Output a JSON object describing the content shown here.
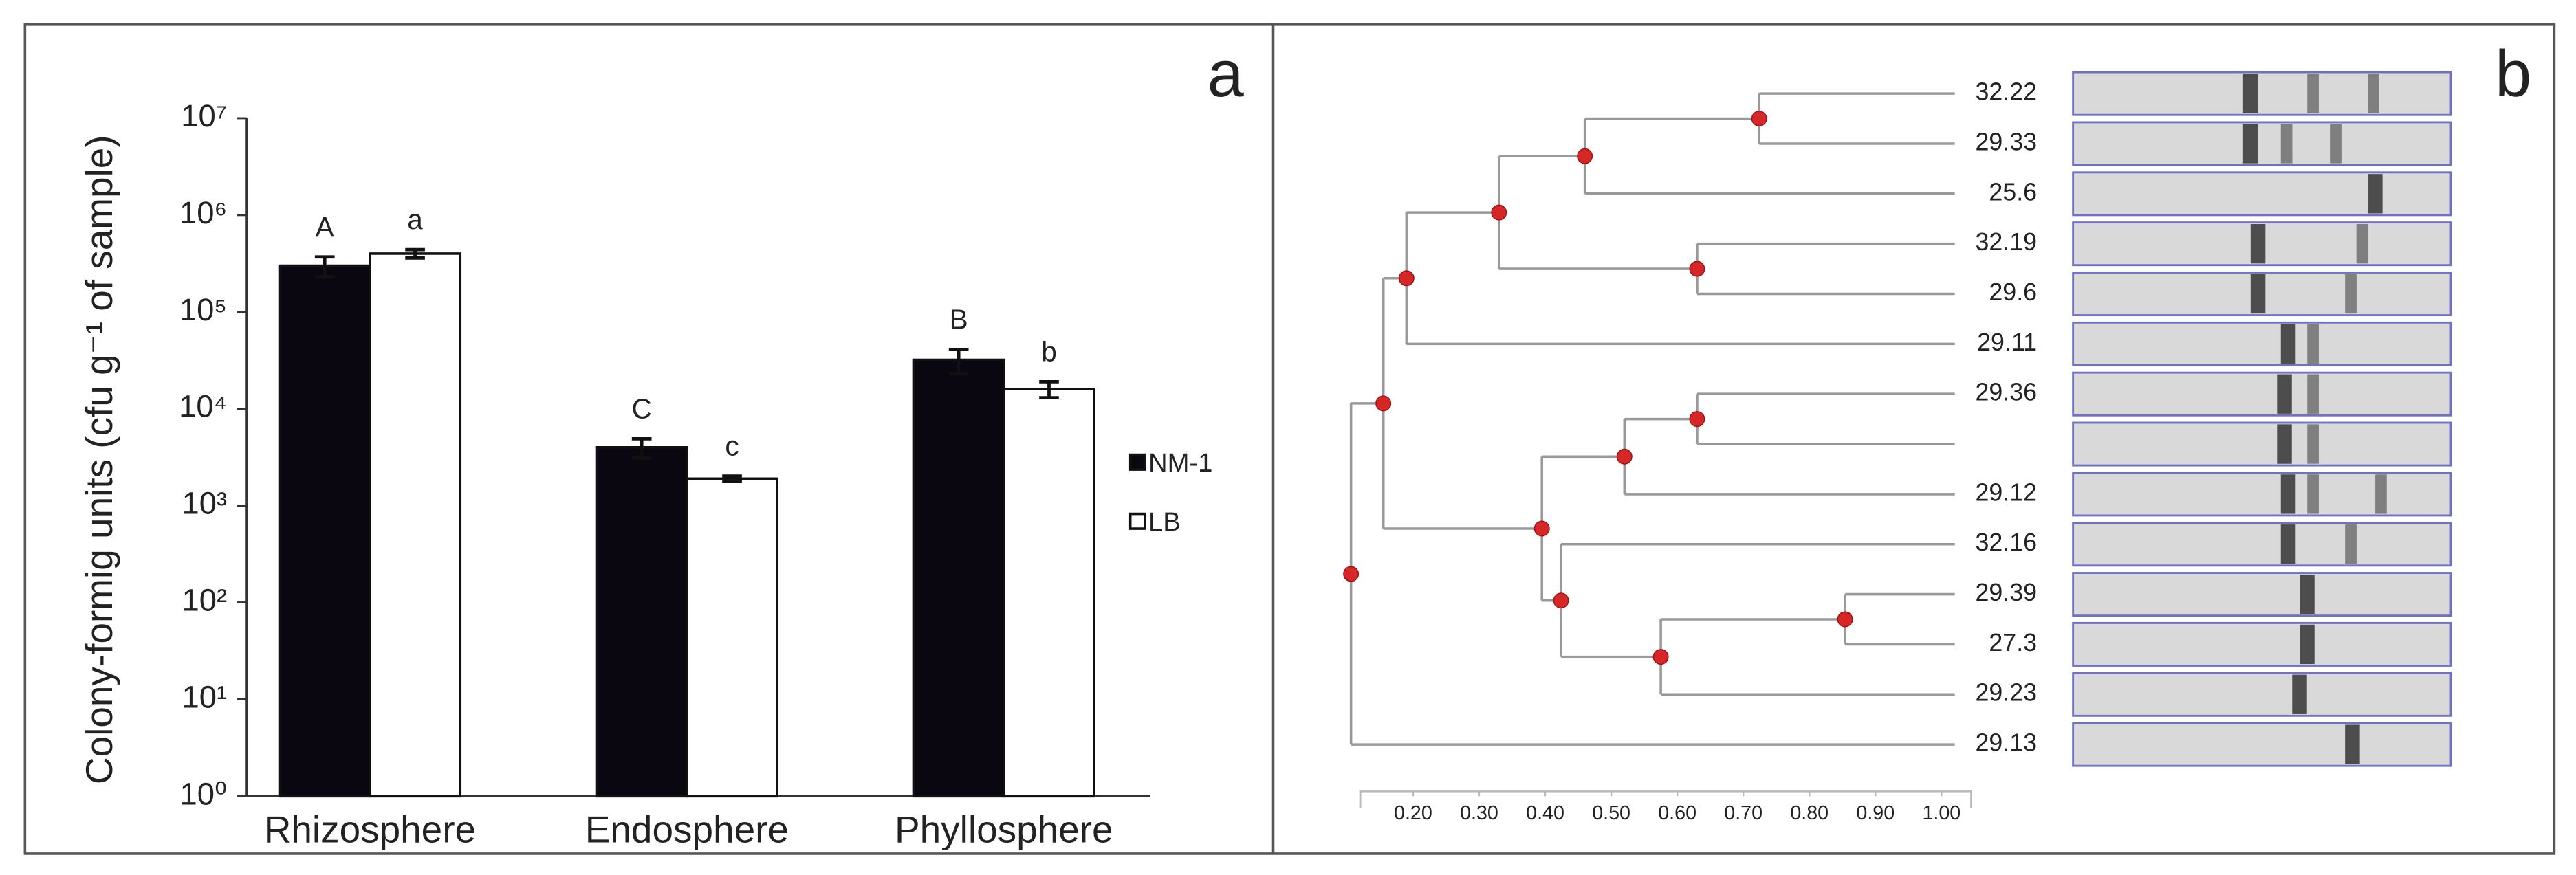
{
  "chart_data": [
    {
      "type": "bar",
      "panel_label": "a",
      "ylabel": "Colony-formig units (cfu g⁻¹ of sample)",
      "categories": [
        "Rhizosphere",
        "Endosphere",
        "Phyllosphere"
      ],
      "series": [
        {
          "name": "NM-1",
          "color": "#0b0710",
          "values": [
            300000,
            4000,
            32000
          ],
          "errors": [
            70000,
            900,
            9000
          ],
          "letters": [
            "A",
            "C",
            "B"
          ]
        },
        {
          "name": "LB",
          "color": "#ffffff",
          "values": [
            400000,
            1900,
            16000
          ],
          "errors": [
            40000,
            120,
            3000
          ],
          "letters": [
            "a",
            "c",
            "b"
          ]
        }
      ],
      "log_scale": true,
      "ylim": [
        1,
        10000000
      ],
      "yticks": [
        {
          "value": 1,
          "label": "10⁰"
        },
        {
          "value": 10,
          "label": "10¹"
        },
        {
          "value": 100,
          "label": "10²"
        },
        {
          "value": 1000,
          "label": "10³"
        },
        {
          "value": 10000,
          "label": "10⁴"
        },
        {
          "value": 100000,
          "label": "10⁵"
        },
        {
          "value": 1000000,
          "label": "10⁶"
        },
        {
          "value": 10000000,
          "label": "10⁷"
        }
      ],
      "legend": "right"
    },
    {
      "type": "dendrogram",
      "panel_label": "b",
      "xlim": [
        0.12,
        1.045
      ],
      "xticks": [
        {
          "value": 0.2,
          "label": "0.20"
        },
        {
          "value": 0.3,
          "label": "0.30"
        },
        {
          "value": 0.4,
          "label": "0.40"
        },
        {
          "value": 0.5,
          "label": "0.50"
        },
        {
          "value": 0.6,
          "label": "0.60"
        },
        {
          "value": 0.7,
          "label": "0.70"
        },
        {
          "value": 0.8,
          "label": "0.80"
        },
        {
          "value": 0.9,
          "label": "0.90"
        },
        {
          "value": 1,
          "label": "1.00"
        }
      ],
      "node_color": "#d62728",
      "tree": {
        "similarity": 0.106,
        "children": [
          {
            "similarity": 0.155,
            "children": [
              {
                "similarity": 0.19,
                "children": [
                  {
                    "similarity": 0.33,
                    "children": [
                      {
                        "similarity": 0.46,
                        "children": [
                          {
                            "similarity": 0.724,
                            "children": [
                              {
                                "label": "32.22"
                              },
                              {
                                "label": "29.33"
                              }
                            ]
                          },
                          {
                            "label": "25.6"
                          }
                        ]
                      },
                      {
                        "similarity": 0.63,
                        "children": [
                          {
                            "label": "32.19"
                          },
                          {
                            "label": "29.6"
                          }
                        ]
                      }
                    ]
                  },
                  {
                    "label": "29.11"
                  }
                ]
              },
              {
                "similarity": 0.395,
                "children": [
                  {
                    "similarity": 0.52,
                    "children": [
                      {
                        "similarity": 0.63,
                        "children": [
                          {
                            "label": "29.36"
                          },
                          {
                            "label": null
                          }
                        ]
                      },
                      {
                        "label": "29.12"
                      }
                    ]
                  },
                  {
                    "similarity": 0.424,
                    "children": [
                      {
                        "label": "32.16"
                      },
                      {
                        "similarity": 0.575,
                        "children": [
                          {
                            "similarity": 0.854,
                            "children": [
                              {
                                "label": "29.39"
                              },
                              {
                                "label": "27.3"
                              }
                            ]
                          },
                          {
                            "label": "29.23"
                          }
                        ]
                      }
                    ]
                  }
                ]
              }
            ]
          },
          {
            "label": "29.13"
          }
        ]
      }
    }
  ]
}
